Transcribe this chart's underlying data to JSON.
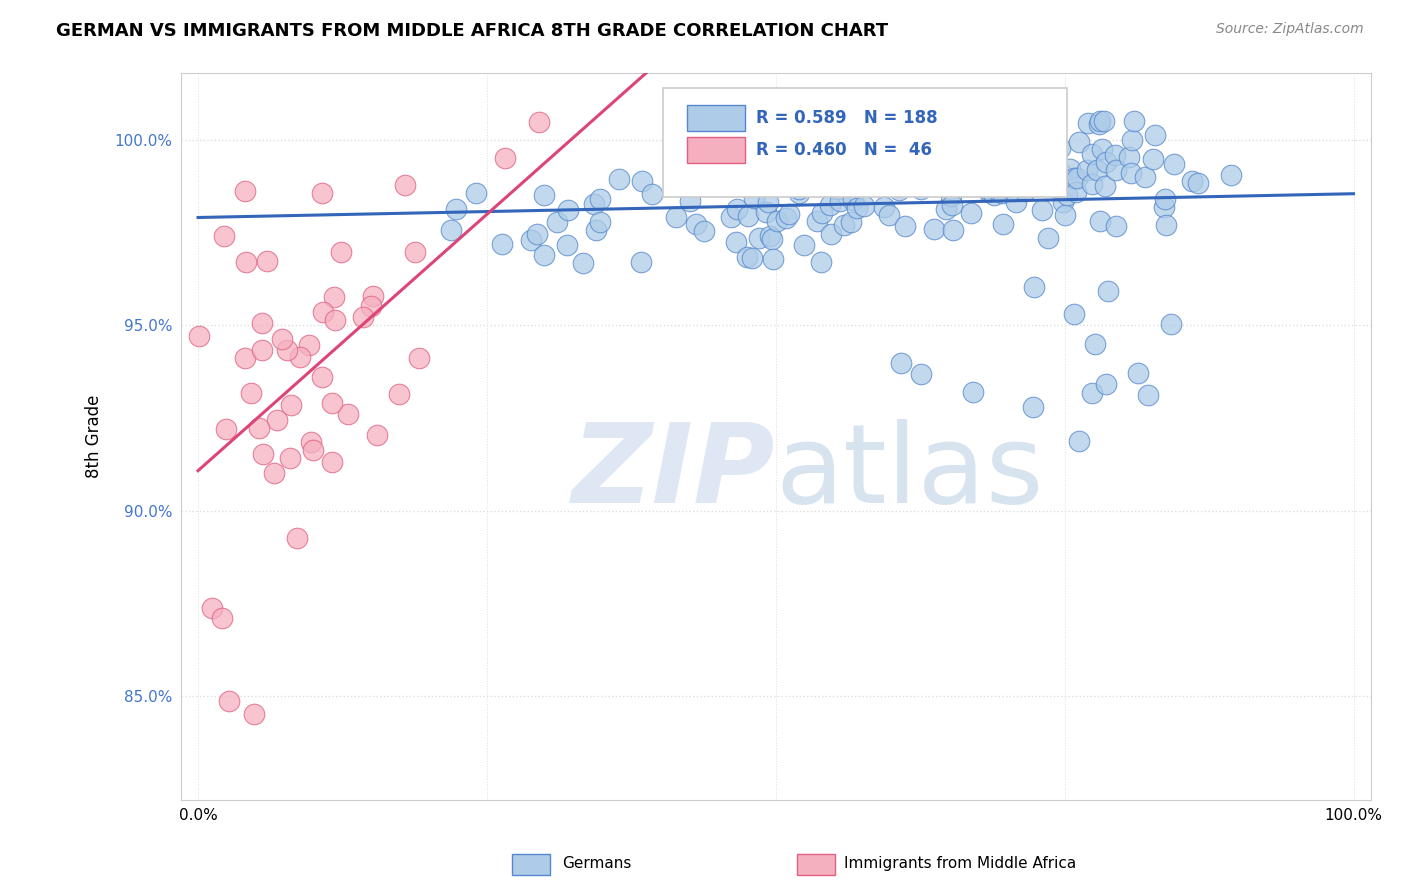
{
  "title": "GERMAN VS IMMIGRANTS FROM MIDDLE AFRICA 8TH GRADE CORRELATION CHART",
  "source": "Source: ZipAtlas.com",
  "ylabel": "8th Grade",
  "blue_R": 0.589,
  "blue_N": 188,
  "pink_R": 0.46,
  "pink_N": 46,
  "blue_color": "#aecce8",
  "blue_edge_color": "#5588cc",
  "blue_line_color": "#3366bb",
  "pink_color": "#f5b0c0",
  "pink_edge_color": "#e06080",
  "pink_line_color": "#dd4477",
  "legend_label_blue": "Germans",
  "legend_label_pink": "Immigrants from Middle Africa",
  "background_color": "#ffffff",
  "title_fontsize": 13,
  "grid_color": "#dddddd",
  "ytick_color": "#4477cc",
  "watermark_zip_color": "#c8d8ec",
  "watermark_atlas_color": "#b0c8e0"
}
